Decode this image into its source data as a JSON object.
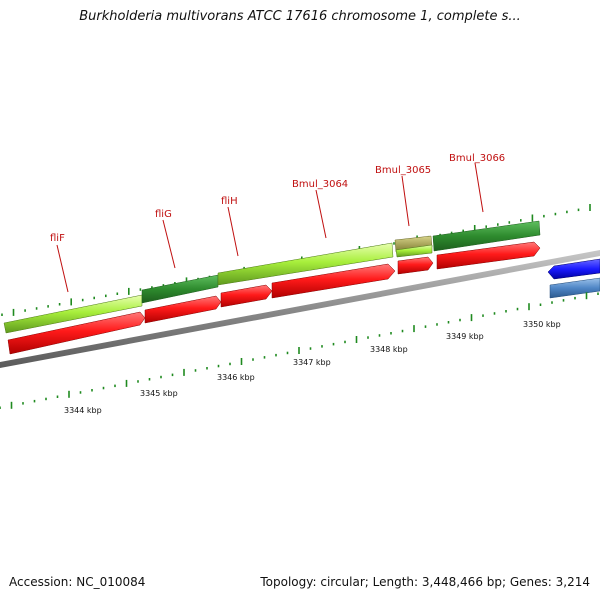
{
  "title": "Burkholderia multivorans ATCC 17616 chromosome 1, complete s...",
  "footer": {
    "accession": "Accession: NC_010084",
    "summary": "Topology: circular; Length: 3,448,466 bp; Genes: 3,214"
  },
  "scale": {
    "unit": "kbp",
    "labels": [
      "3344 kbp",
      "3345 kbp",
      "3346 kbp",
      "3347 kbp",
      "3348 kbp",
      "3349 kbp",
      "3350 kbp"
    ]
  },
  "genes": [
    {
      "name": "fliF",
      "label": "fliF"
    },
    {
      "name": "fliG",
      "label": "fliG"
    },
    {
      "name": "fliH",
      "label": "fliH"
    },
    {
      "name": "Bmul_3064",
      "label": "Bmul_3064"
    },
    {
      "name": "Bmul_3065",
      "label": "Bmul_3065"
    },
    {
      "name": "Bmul_3066",
      "label": "Bmul_3066"
    }
  ],
  "colors": {
    "cds_red": "#ff1a1a",
    "gene_dark_green": "#2e8b2e",
    "gene_light_green": "#a8ef3c",
    "gene_olive": "#a6a24a",
    "backbone_grey": "#8a8a8a",
    "tick_green": "#1f8a1f",
    "label_red": "#c01010",
    "neighbor_blue": "#1a1aff",
    "neighbor_steel": "#4f86c6"
  }
}
